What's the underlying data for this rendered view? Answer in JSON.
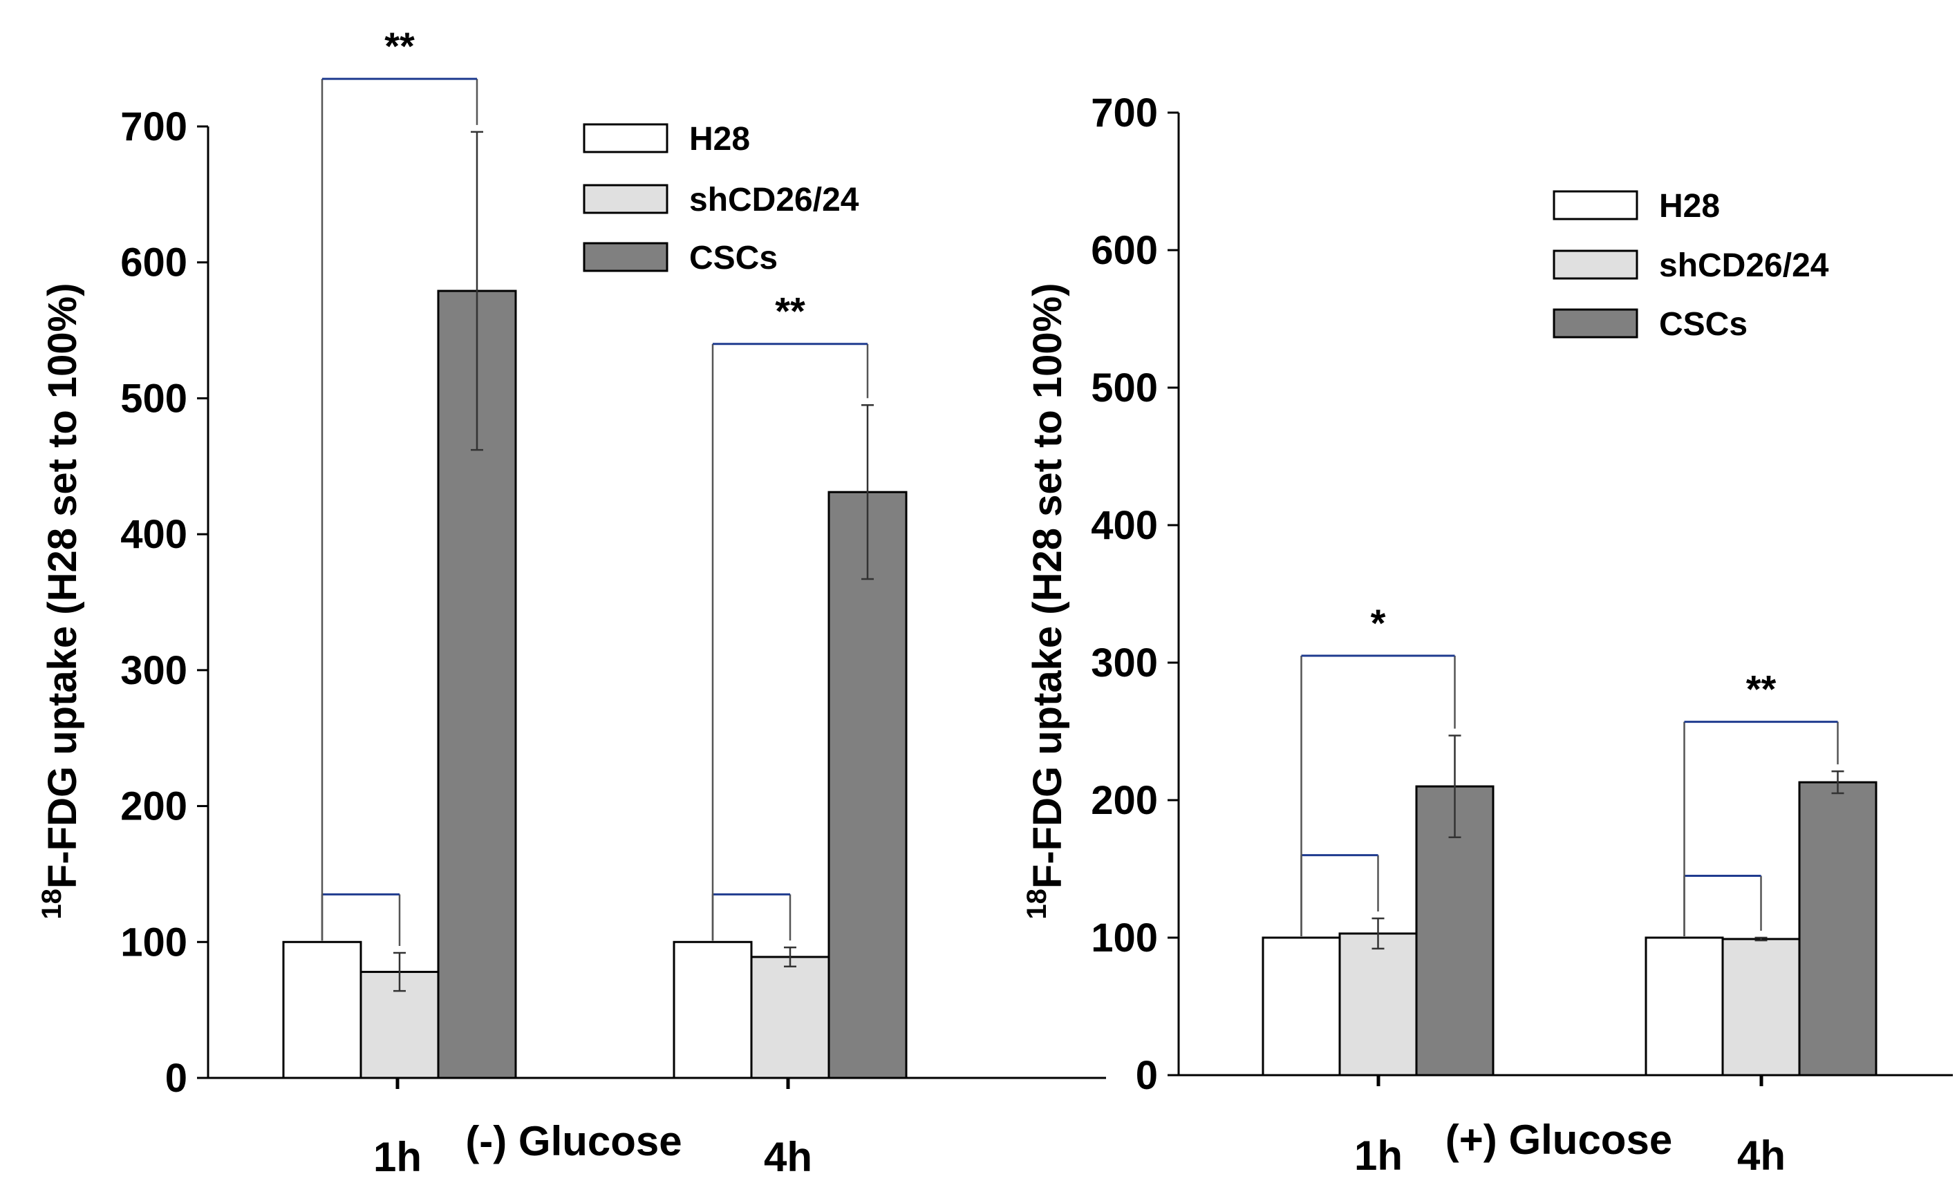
{
  "chart_data": [
    {
      "type": "bar",
      "panel": "left",
      "condition_label": "(-) Glucose",
      "categories": [
        "1h",
        "4h"
      ],
      "series": [
        {
          "name": "H28",
          "color": "#ffffff",
          "values": [
            100,
            100
          ],
          "errors": [
            0,
            0
          ]
        },
        {
          "name": "shCD26/24",
          "color": "#e0e0e0",
          "values": [
            78,
            89
          ],
          "errors": [
            14,
            7
          ]
        },
        {
          "name": "CSCs",
          "color": "#808080",
          "values": [
            579,
            431
          ],
          "errors": [
            117,
            64
          ]
        }
      ],
      "ylabel_sup": "18",
      "ylabel": "F-FDG uptake (H28 set to 100%)",
      "ylim": [
        0,
        700
      ],
      "yticks": [
        "0",
        "100",
        "200",
        "300",
        "400",
        "500",
        "600",
        "700"
      ],
      "legend": [
        "H28",
        "shCD26/24",
        "CSCs"
      ],
      "legend_position": "top-right",
      "significance": [
        {
          "category": "1h",
          "from": "H28",
          "to": "shCD26/24",
          "level_value": 135,
          "label": ""
        },
        {
          "category": "1h",
          "from": "H28",
          "to": "CSCs",
          "level_value": 735,
          "label": "**"
        },
        {
          "category": "4h",
          "from": "H28",
          "to": "shCD26/24",
          "level_value": 135,
          "label": ""
        },
        {
          "category": "4h",
          "from": "H28",
          "to": "CSCs",
          "level_value": 540,
          "label": "**"
        }
      ]
    },
    {
      "type": "bar",
      "panel": "right",
      "condition_label": "(+) Glucose",
      "categories": [
        "1h",
        "4h"
      ],
      "series": [
        {
          "name": "H28",
          "color": "#ffffff",
          "values": [
            100,
            100
          ],
          "errors": [
            0,
            0
          ]
        },
        {
          "name": "shCD26/24",
          "color": "#e0e0e0",
          "values": [
            103,
            99
          ],
          "errors": [
            11,
            1
          ]
        },
        {
          "name": "CSCs",
          "color": "#808080",
          "values": [
            210,
            213
          ],
          "errors": [
            37,
            8
          ]
        }
      ],
      "ylabel_sup": "18",
      "ylabel": "F-FDG uptake (H28 set to 100%)",
      "ylim": [
        0,
        700
      ],
      "yticks": [
        "0",
        "100",
        "200",
        "300",
        "400",
        "500",
        "600",
        "700"
      ],
      "legend": [
        "H28",
        "shCD26/24",
        "CSCs"
      ],
      "legend_position": "top-right",
      "significance": [
        {
          "category": "1h",
          "from": "H28",
          "to": "shCD26/24",
          "level_value": 160,
          "label": ""
        },
        {
          "category": "1h",
          "from": "H28",
          "to": "CSCs",
          "level_value": 305,
          "label": "*"
        },
        {
          "category": "4h",
          "from": "H28",
          "to": "shCD26/24",
          "level_value": 145,
          "label": ""
        },
        {
          "category": "4h",
          "from": "H28",
          "to": "CSCs",
          "level_value": 257,
          "label": "**"
        }
      ]
    }
  ]
}
